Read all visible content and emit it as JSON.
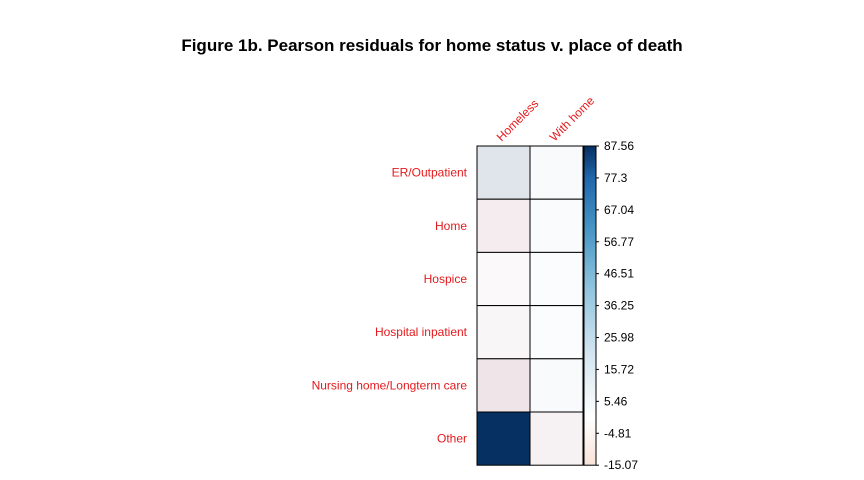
{
  "chart_data": {
    "type": "heatmap",
    "title": "Figure 1b. Pearson residuals for home status v. place of death",
    "columns": [
      "Homeless",
      "With home"
    ],
    "rows": [
      "ER/Outpatient",
      "Home",
      "Hospice",
      "Hospital inpatient",
      "Nursing home/Longterm care",
      "Other"
    ],
    "values": [
      [
        7.5,
        1.0
      ],
      [
        -4.0,
        0.9
      ],
      [
        -1.0,
        0.6
      ],
      [
        -1.8,
        0.6
      ],
      [
        -6.0,
        1.2
      ],
      [
        87.56,
        -3.0
      ]
    ],
    "colorbar": {
      "min": -15.07,
      "max": 87.56,
      "ticks": [
        "87.56",
        "77.3",
        "67.04",
        "56.77",
        "46.51",
        "36.25",
        "25.98",
        "15.72",
        "5.46",
        "-4.81",
        "-15.07"
      ]
    },
    "colors": {
      "label": "#e41a1c",
      "negative_end": "#67001f",
      "zero": "#ffffff",
      "positive_end": "#053061"
    },
    "legend": "right",
    "grid": true
  }
}
